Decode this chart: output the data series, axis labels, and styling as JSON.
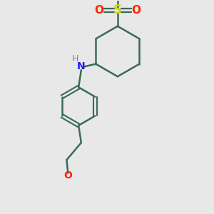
{
  "background_color": "#e8e8e8",
  "bond_color": "#3a6b5a",
  "S_color": "#d4d400",
  "O_color": "#ff2200",
  "N_color": "#1a1aff",
  "H_color": "#888888",
  "line_width": 1.8,
  "figsize": [
    3.0,
    3.0
  ],
  "dpi": 100,
  "xlim": [
    -3.2,
    2.8
  ],
  "ylim": [
    -4.8,
    3.2
  ]
}
